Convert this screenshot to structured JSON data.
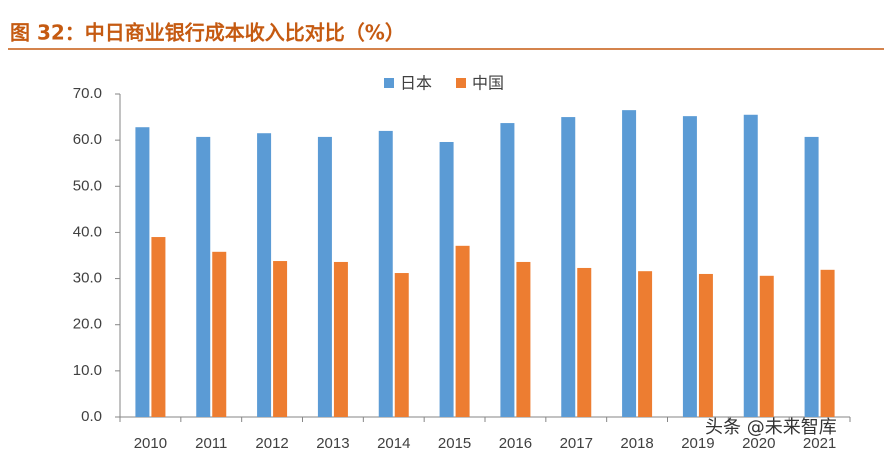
{
  "chart_data": {
    "type": "bar",
    "title": "图 32：中日商业银行成本收入比对比（%）",
    "categories": [
      "2010",
      "2011",
      "2012",
      "2013",
      "2014",
      "2015",
      "2016",
      "2017",
      "2018",
      "2019",
      "2020",
      "2021"
    ],
    "series": [
      {
        "name": "日本",
        "color": "#5b9bd5",
        "values": [
          62.8,
          60.7,
          61.5,
          60.7,
          62.0,
          59.6,
          63.7,
          65.0,
          66.5,
          65.2,
          65.5,
          60.7
        ]
      },
      {
        "name": "中国",
        "color": "#ed7d31",
        "values": [
          39.0,
          35.8,
          33.8,
          33.6,
          31.2,
          37.1,
          33.6,
          32.3,
          31.6,
          31.0,
          30.6,
          31.9
        ]
      }
    ],
    "ylim": [
      0,
      70
    ],
    "yticks": [
      {
        "value": 0,
        "label": "0.0"
      },
      {
        "value": 10,
        "label": "10.0"
      },
      {
        "value": 20,
        "label": "20.0"
      },
      {
        "value": 30,
        "label": "30.0"
      },
      {
        "value": 40,
        "label": "40.0"
      },
      {
        "value": 50,
        "label": "50.0"
      },
      {
        "value": 60,
        "label": "60.0"
      },
      {
        "value": 70,
        "label": "70.0"
      }
    ],
    "legend": "top",
    "watermark": "头条 @未来智库"
  }
}
